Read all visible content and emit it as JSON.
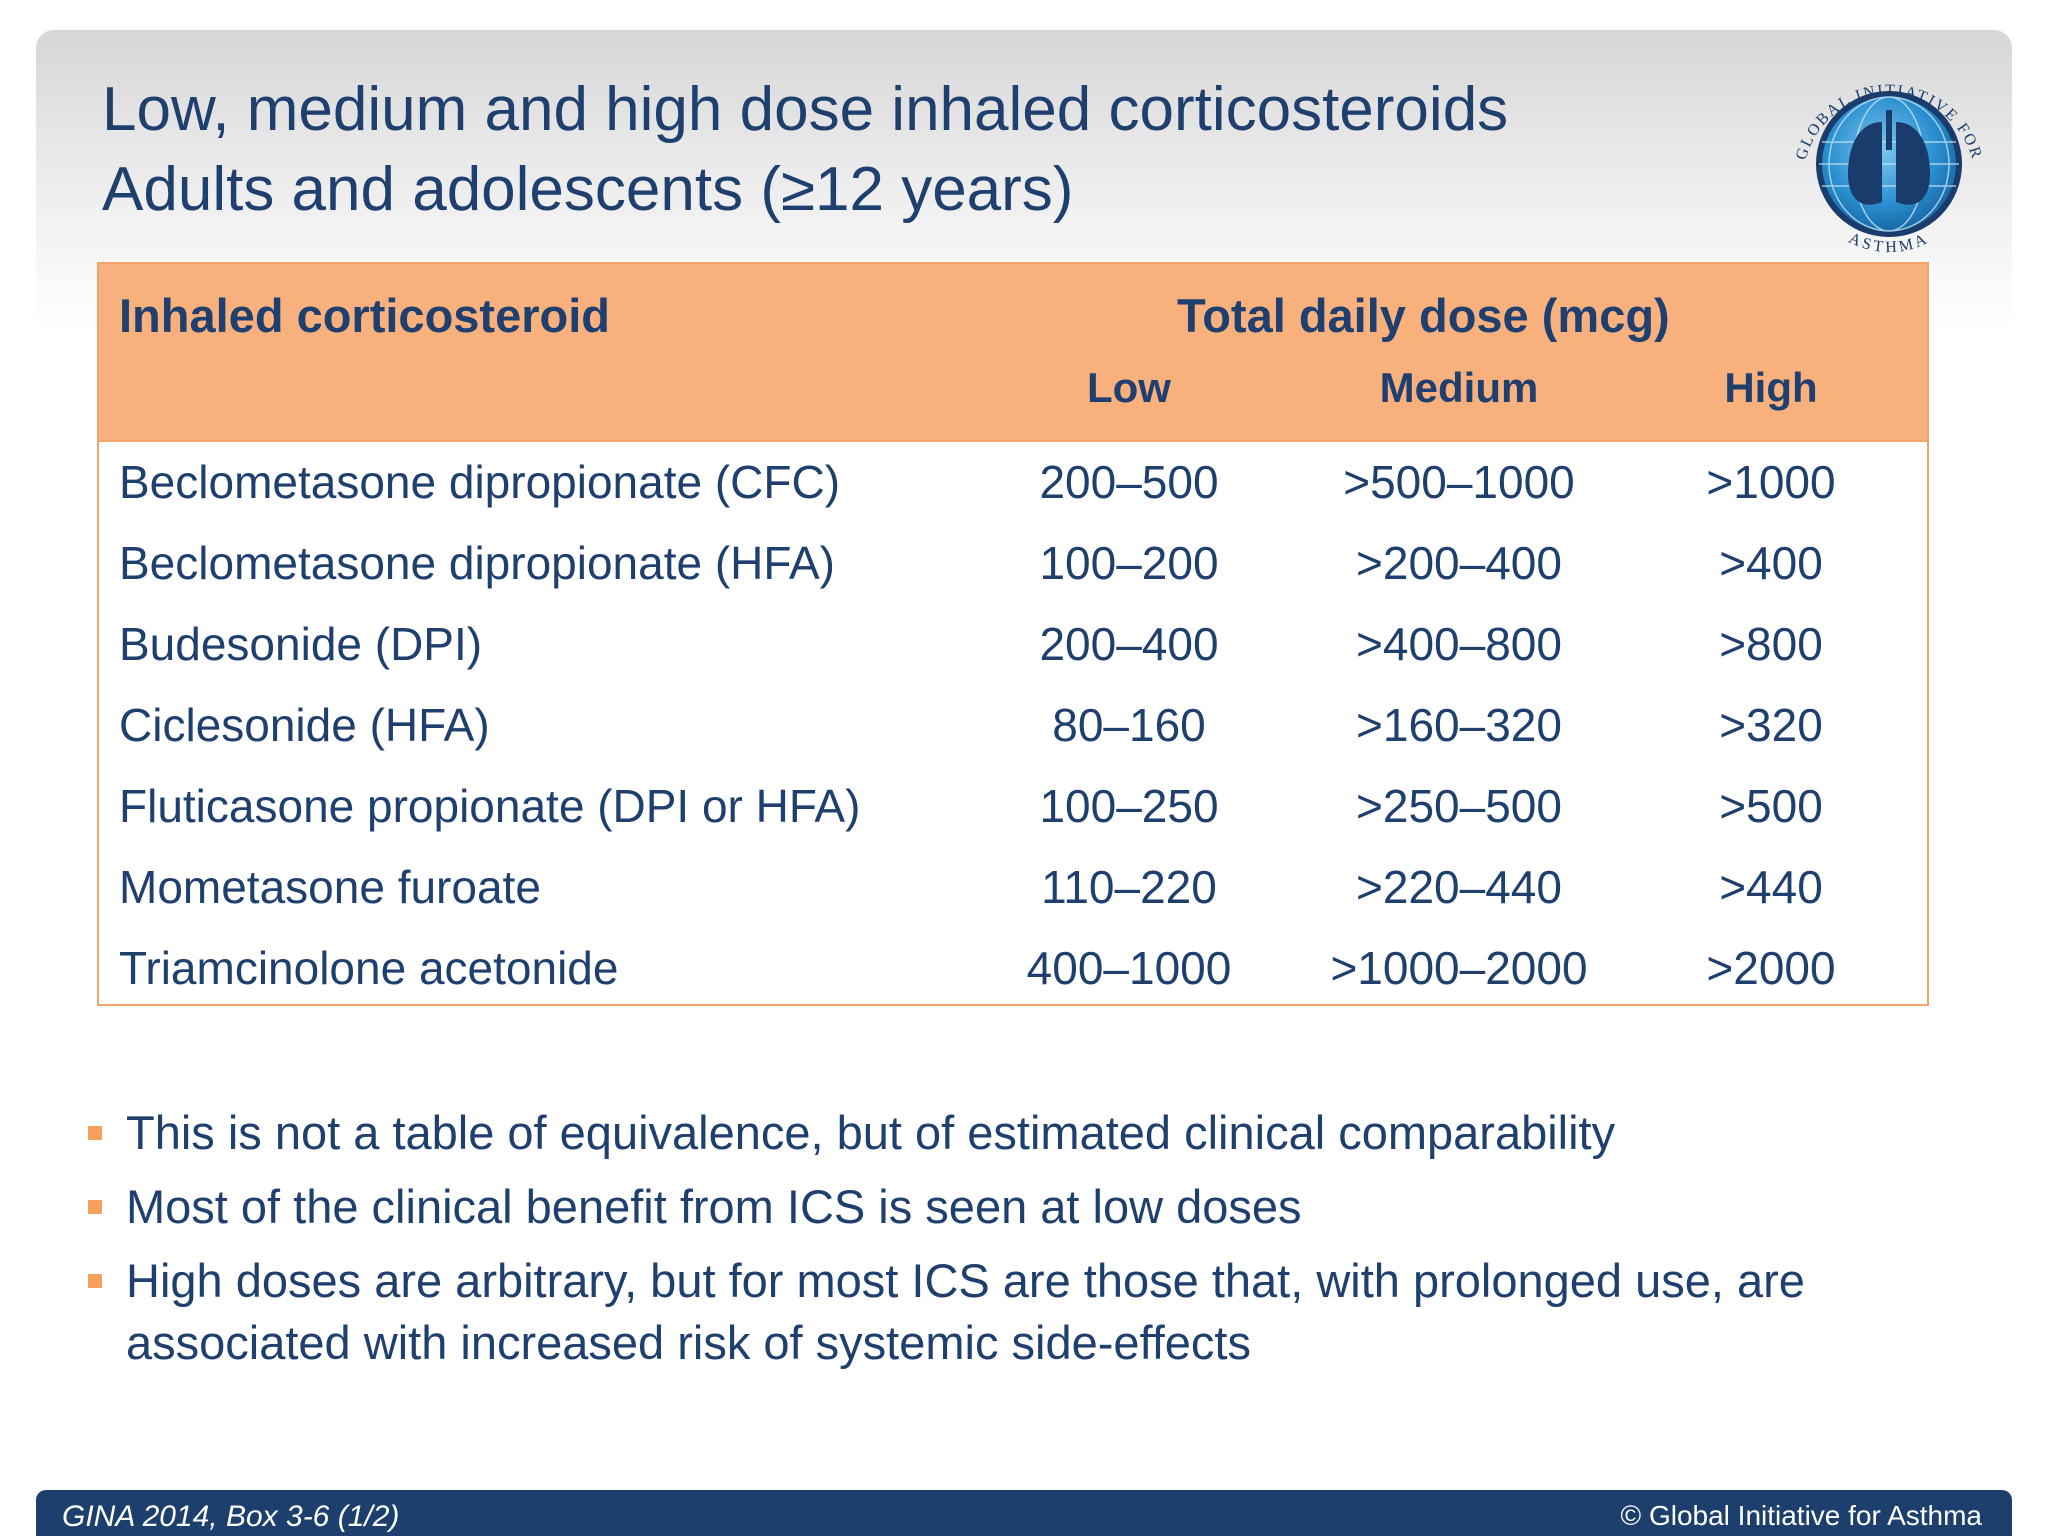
{
  "slide": {
    "title_line1": "Low, medium and high dose inhaled corticosteroids",
    "title_line2": "Adults and adolescents (≥12 years)"
  },
  "logo": {
    "text_top": "GLOBAL INITIATIVE FOR",
    "text_bottom": "ASTHMA",
    "icon": "lungs-globe-icon"
  },
  "table": {
    "header_drug": "Inhaled corticosteroid",
    "header_dose": "Total daily dose (mcg)",
    "sub_low": "Low",
    "sub_medium": "Medium",
    "sub_high": "High",
    "rows": [
      {
        "drug": "Beclometasone dipropionate (CFC)",
        "low": "200–500",
        "medium": ">500–1000",
        "high": ">1000"
      },
      {
        "drug": "Beclometasone dipropionate (HFA)",
        "low": "100–200",
        "medium": ">200–400",
        "high": ">400"
      },
      {
        "drug": "Budesonide (DPI)",
        "low": "200–400",
        "medium": ">400–800",
        "high": ">800"
      },
      {
        "drug": "Ciclesonide (HFA)",
        "low": "80–160",
        "medium": ">160–320",
        "high": ">320"
      },
      {
        "drug": "Fluticasone propionate (DPI or HFA)",
        "low": "100–250",
        "medium": ">250–500",
        "high": ">500"
      },
      {
        "drug": "Mometasone furoate",
        "low": "110–220",
        "medium": ">220–440",
        "high": ">440"
      },
      {
        "drug": "Triamcinolone acetonide",
        "low": "400–1000",
        "medium": ">1000–2000",
        "high": ">2000"
      }
    ]
  },
  "bullets": [
    "This is not a table of equivalence, but of estimated clinical comparability",
    "Most of the clinical benefit from ICS is seen at low doses",
    "High doses are arbitrary, but for most ICS are those that, with prolonged use, are associated with increased risk of systemic side-effects"
  ],
  "footer": {
    "left": "GINA 2014, Box 3-6 (1/2)",
    "right": "© Global Initiative for Asthma"
  },
  "colors": {
    "title": "#1f3f6e",
    "header_fill": "#f8b17d",
    "table_border": "#f2a56b",
    "bullet_marker": "#f4a15e",
    "footer_bar": "#1c3f6e"
  }
}
